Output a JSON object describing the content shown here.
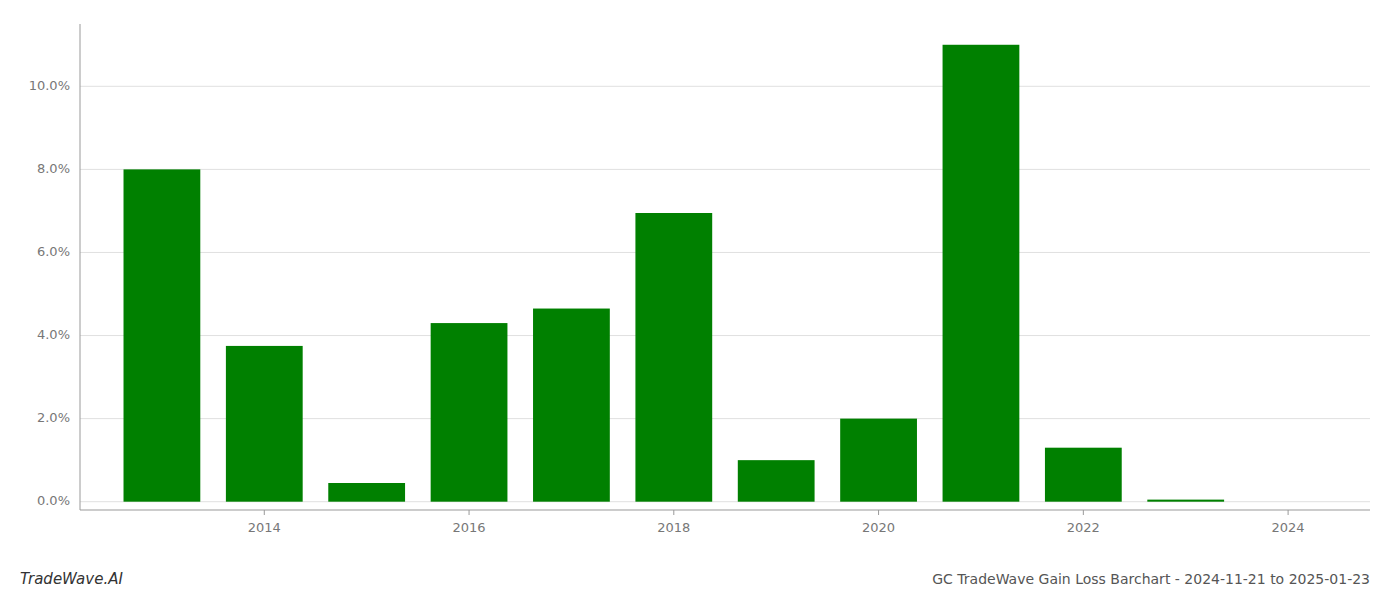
{
  "chart_data": {
    "type": "bar",
    "title": "GC TradeWave Gain Loss Barchart - 2024-11-21 to 2025-01-23",
    "annotations": [
      "TradeWave.AI"
    ],
    "x": [
      2013,
      2014,
      2015,
      2016,
      2017,
      2018,
      2019,
      2020,
      2021,
      2022,
      2023
    ],
    "values": [
      0.08,
      0.0375,
      0.0045,
      0.043,
      0.0465,
      0.0695,
      0.01,
      0.02,
      0.11,
      0.013,
      0.0005
    ],
    "color": "#008000",
    "xlim": [
      2012.2,
      2024.8
    ],
    "xticks": [
      2014,
      2016,
      2018,
      2020,
      2022,
      2024
    ],
    "ylim": [
      -0.002,
      0.115
    ],
    "yticks": [
      {
        "value": 0.0,
        "label": "0.0%"
      },
      {
        "value": 0.02,
        "label": "2.0%"
      },
      {
        "value": 0.04,
        "label": "4.0%"
      },
      {
        "value": 0.06,
        "label": "6.0%"
      },
      {
        "value": 0.08,
        "label": "8.0%"
      },
      {
        "value": 0.1,
        "label": "10.0%"
      }
    ],
    "grid": true
  }
}
